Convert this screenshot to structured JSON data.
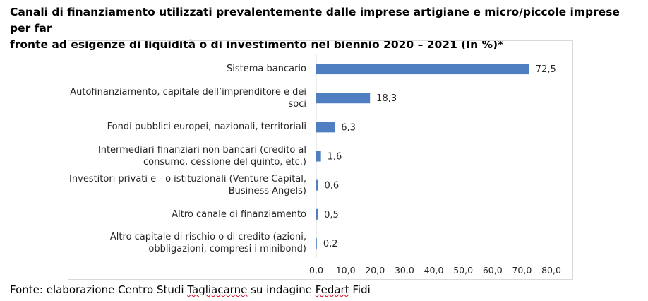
{
  "title": "Canali di finanziamento utilizzati prevalentemente dalle imprese artigiane e micro/piccole imprese per far\nfronte ad esigenze di liquidità o di investimento nel biennio 2020 – 2021 (In %)*",
  "source": {
    "prefix": "Fonte: elaborazione Centro Studi ",
    "word1": "Tagliacarne",
    "middle": " su indagine ",
    "word2": "Fedart",
    "suffix": " Fidi"
  },
  "colors": {
    "bar": "#4f7fc0",
    "axis": "#d9d9d9",
    "text": "#262626"
  },
  "chart_data": {
    "type": "bar",
    "orientation": "horizontal",
    "categories": [
      "Sistema bancario",
      "Autofinanziamento, capitale dell’imprenditore e dei\nsoci",
      "Fondi pubblici europei, nazionali, territoriali",
      "Intermediari finanziari non bancari (credito al\nconsumo, cessione del quinto, etc.)",
      "Investitori privati e - o istituzionali (Venture Capital,\nBusiness Angels)",
      "Altro canale di finanziamento",
      "Altro capitale di rischio o di credito (azioni,\nobbligazioni, compresi i minibond)"
    ],
    "values": [
      72.5,
      18.3,
      6.3,
      1.6,
      0.6,
      0.5,
      0.2
    ],
    "data_labels": [
      "72,5",
      "18,3",
      "6,3",
      "1,6",
      "0,6",
      "0,5",
      "0,2"
    ],
    "xlim": [
      0,
      80
    ],
    "xticks": [
      "0,0",
      "10,0",
      "20,0",
      "30,0",
      "40,0",
      "50,0",
      "60,0",
      "70,0",
      "80,0"
    ],
    "grid": false,
    "legend": "none"
  }
}
